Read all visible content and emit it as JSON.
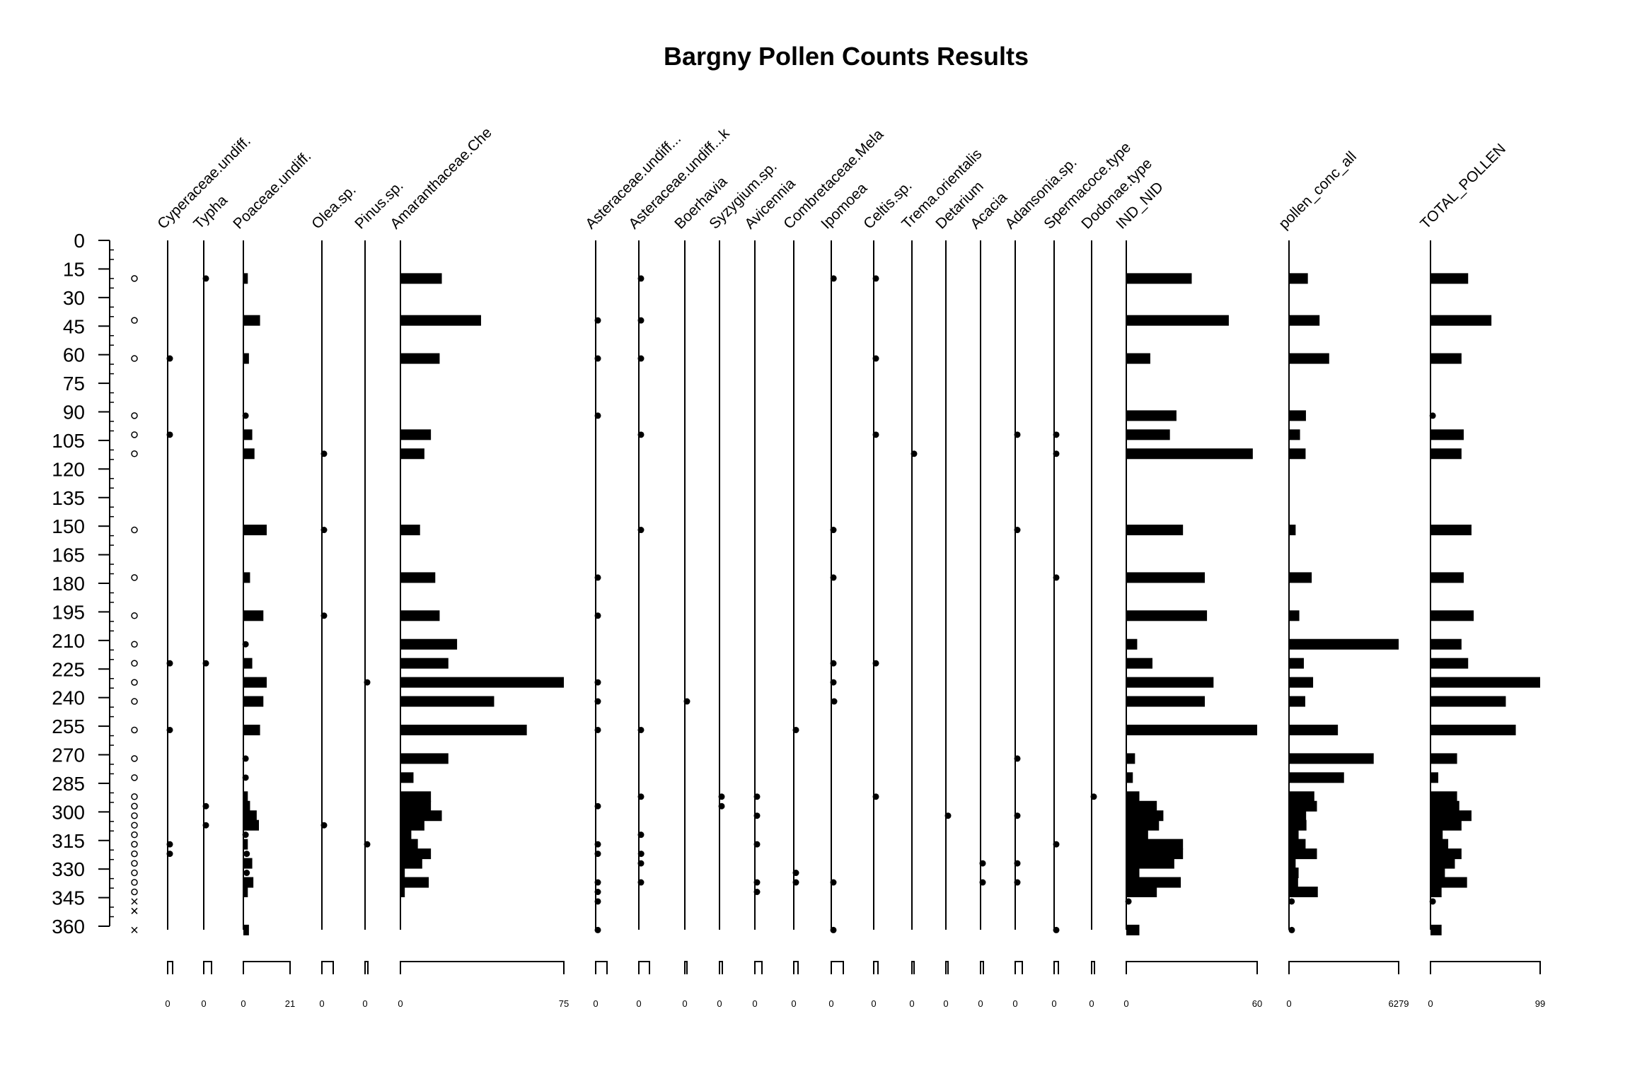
{
  "chart_data": {
    "type": "bar",
    "title": "Bargny Pollen Counts Results",
    "depth_ticks": [
      0,
      15,
      30,
      45,
      60,
      75,
      90,
      105,
      120,
      135,
      150,
      165,
      180,
      195,
      210,
      225,
      240,
      255,
      270,
      285,
      300,
      315,
      330,
      345,
      360
    ],
    "depth_range": [
      0,
      360
    ],
    "depths": [
      20,
      42,
      62,
      92,
      102,
      112,
      152,
      177,
      197,
      212,
      222,
      232,
      242,
      257,
      272,
      282,
      292,
      297,
      302,
      307,
      312,
      317,
      322,
      327,
      332,
      337,
      342,
      347,
      352,
      362
    ],
    "depth_markers": [
      "o",
      "o",
      "o",
      "o",
      "o",
      "o",
      "o",
      "o",
      "o",
      "o",
      "o",
      "o",
      "o",
      "o",
      "o",
      "o",
      "o",
      "o",
      "o",
      "o",
      "o",
      "o",
      "o",
      "o",
      "o",
      "o",
      "o",
      "x",
      "x",
      "x"
    ],
    "taxa": [
      {
        "name": "Cyperaceae.undiff.",
        "scale_max": "",
        "scale_min": "0",
        "max": 21,
        "values": [
          0,
          0,
          1,
          0,
          1,
          0,
          0,
          0,
          0,
          0,
          1,
          0,
          0,
          1,
          0,
          0,
          0,
          0,
          0,
          0,
          0,
          1,
          1,
          0,
          0,
          0,
          0,
          0,
          0,
          0
        ]
      },
      {
        "name": "Typha",
        "scale_max": "",
        "scale_min": "0",
        "max": 21,
        "values": [
          1,
          0,
          0,
          0,
          0,
          0,
          0,
          0,
          0,
          0,
          1,
          0,
          0,
          0,
          0,
          0,
          0,
          1.5,
          0,
          1,
          0,
          0,
          0,
          0,
          0,
          0,
          0,
          0,
          0,
          0
        ]
      },
      {
        "name": "Poaceae.undiff.",
        "scale_max": "21",
        "scale_min": "0",
        "max": 21,
        "values": [
          2,
          7.5,
          2.5,
          1,
          4,
          5,
          10.5,
          3,
          9,
          1,
          4,
          10.5,
          9,
          7.5,
          1,
          1,
          2,
          3,
          6,
          7,
          1,
          2,
          1.5,
          4,
          1.5,
          4.5,
          2,
          0,
          0,
          2.5
        ]
      },
      {
        "name": "Olea.sp.",
        "scale_max": "",
        "scale_min": "0",
        "max": 21,
        "values": [
          0,
          0,
          0,
          0,
          0,
          2,
          1,
          0,
          0.5,
          0,
          0,
          0,
          0,
          0,
          0,
          0,
          0,
          0,
          0,
          1,
          0,
          0,
          0,
          0,
          0,
          0,
          0,
          0,
          0,
          0
        ]
      },
      {
        "name": "Pinus.sp.",
        "scale_max": "",
        "scale_min": "0",
        "max": 21,
        "values": [
          0,
          0,
          0,
          0,
          0,
          0,
          0,
          0,
          0,
          0,
          0,
          0.5,
          0,
          0,
          0,
          0,
          0,
          0,
          0,
          0,
          0,
          0.5,
          0,
          0,
          0,
          0,
          0,
          0,
          0,
          0
        ]
      },
      {
        "name": "Amaranthaceae.Che",
        "scale_max": "75",
        "scale_min": "0",
        "max": 75,
        "values": [
          19,
          37,
          18,
          0,
          14,
          11,
          9,
          16,
          18,
          26,
          22,
          75,
          43,
          58,
          22,
          6,
          14,
          14,
          19,
          11,
          5,
          8,
          14,
          10,
          2,
          13,
          2,
          0,
          0,
          0
        ]
      },
      {
        "name": "Asteraceae.undiff...",
        "scale_max": "",
        "scale_min": "0",
        "max": 21,
        "values": [
          0,
          1,
          1,
          1,
          0,
          0,
          0,
          3,
          1,
          0,
          0,
          1,
          1,
          1,
          0,
          0,
          0,
          1,
          0,
          0,
          0,
          1,
          1,
          0,
          0,
          1,
          1,
          1,
          0,
          1
        ]
      },
      {
        "name": "Asteraceae.undiff...k",
        "scale_max": "",
        "scale_min": "0",
        "max": 21,
        "values": [
          3,
          1.5,
          1,
          0,
          1.5,
          0,
          2,
          0,
          0,
          0,
          0,
          0,
          0,
          1,
          0,
          0,
          1,
          0,
          0,
          0,
          2,
          0,
          4.5,
          2,
          0,
          2,
          0,
          0,
          0,
          0
        ]
      },
      {
        "name": "Boerhavia",
        "scale_max": "",
        "scale_min": "0",
        "max": 21,
        "values": [
          0,
          0,
          0,
          0,
          0,
          0,
          0,
          0,
          0,
          0,
          0,
          0,
          1,
          0,
          0,
          0,
          0,
          0,
          0,
          0,
          0,
          0,
          0,
          0,
          0,
          0,
          0,
          0,
          0,
          0
        ]
      },
      {
        "name": "Syzygium.sp.",
        "scale_max": "",
        "scale_min": "0",
        "max": 21,
        "values": [
          0,
          0,
          0,
          0,
          0,
          0,
          0,
          0,
          0,
          0,
          0,
          0,
          0,
          0,
          0,
          0,
          1,
          1,
          0,
          0,
          0,
          0,
          0,
          0,
          0,
          0,
          0,
          0,
          0,
          0
        ]
      },
      {
        "name": "Avicennia",
        "scale_max": "",
        "scale_min": "0",
        "max": 21,
        "values": [
          0,
          0,
          0,
          0,
          0,
          0,
          0,
          0,
          0,
          0,
          0,
          0,
          0,
          0,
          0,
          0,
          2,
          0,
          2,
          0,
          0,
          1,
          0,
          0,
          0,
          1,
          2,
          0,
          0,
          0
        ]
      },
      {
        "name": "Combretaceae.Mela",
        "scale_max": "",
        "scale_min": "0",
        "max": 21,
        "values": [
          0,
          0,
          0,
          0,
          0,
          0,
          0,
          0,
          0,
          0,
          0,
          0,
          0,
          1,
          0,
          0,
          0,
          0,
          0,
          0,
          0,
          0,
          0,
          0,
          1,
          2,
          0,
          0,
          0,
          0
        ]
      },
      {
        "name": "Ipomoea",
        "scale_max": "",
        "scale_min": "0",
        "max": 21,
        "values": [
          4,
          0,
          0,
          0,
          0,
          0,
          1,
          1,
          0,
          0,
          1,
          1,
          5,
          0,
          0,
          0,
          0,
          0,
          0,
          0,
          0,
          0,
          0,
          0,
          0,
          1,
          0,
          0,
          0,
          1
        ]
      },
      {
        "name": "Celtis.sp.",
        "scale_max": "",
        "scale_min": "0",
        "max": 21,
        "values": [
          1,
          0,
          1,
          0,
          1,
          0,
          0,
          0,
          0,
          0,
          1,
          0,
          0,
          0,
          0,
          0,
          2,
          0,
          0,
          0,
          0,
          0,
          0,
          0,
          0,
          0,
          0,
          0,
          0,
          0
        ]
      },
      {
        "name": "Trema.orientalis",
        "scale_max": "",
        "scale_min": "0",
        "max": 21,
        "values": [
          0,
          0,
          0,
          0,
          0,
          1,
          0,
          0,
          0,
          0,
          0,
          0,
          0,
          0,
          0,
          0,
          0,
          0,
          0,
          0,
          0,
          0,
          0,
          0,
          0,
          0,
          0,
          0,
          0,
          0
        ]
      },
      {
        "name": "Detarium",
        "scale_max": "",
        "scale_min": "0",
        "max": 21,
        "values": [
          0,
          0,
          0,
          0,
          0,
          0,
          0,
          0,
          0,
          0,
          0,
          0,
          0,
          0,
          0,
          0,
          0,
          0,
          1,
          0,
          0,
          0,
          0,
          0,
          0,
          0,
          0,
          0,
          0,
          0
        ]
      },
      {
        "name": "Acacia",
        "scale_max": "",
        "scale_min": "0",
        "max": 21,
        "values": [
          0,
          0,
          0,
          0,
          0,
          0,
          0,
          0,
          0,
          0,
          0,
          0,
          0,
          0,
          0,
          0,
          0,
          0,
          0,
          0,
          0,
          0,
          0,
          1,
          0,
          1,
          0,
          0,
          0,
          0
        ]
      },
      {
        "name": "Adansonia.sp.",
        "scale_max": "",
        "scale_min": "0",
        "max": 21,
        "values": [
          0,
          0,
          0,
          0,
          1,
          0,
          1,
          0,
          0,
          0,
          0,
          0,
          0,
          0,
          1,
          0,
          0,
          0,
          2,
          0,
          0,
          0,
          0,
          3,
          0,
          1,
          0,
          0,
          0,
          0
        ]
      },
      {
        "name": "Spermacoce.type",
        "scale_max": "",
        "scale_min": "0",
        "max": 21,
        "values": [
          0,
          0,
          0,
          0,
          2,
          1,
          0,
          1,
          0,
          0,
          0,
          0,
          0,
          0,
          0,
          0,
          0,
          0,
          0,
          0,
          0,
          1,
          0,
          0,
          0,
          0,
          0,
          0,
          0,
          2
        ]
      },
      {
        "name": "Dodonae.type",
        "scale_max": "",
        "scale_min": "0",
        "max": 21,
        "values": [
          0,
          0,
          0,
          0,
          0,
          0,
          0,
          0,
          0,
          0,
          0,
          0,
          0,
          0,
          0,
          0,
          1,
          0,
          0,
          0,
          0,
          0,
          0,
          0,
          0,
          0,
          0,
          0,
          0,
          0
        ]
      },
      {
        "name": "IND_NID",
        "scale_max": "60",
        "scale_min": "0",
        "max": 60,
        "values": [
          30,
          47,
          11,
          23,
          20,
          58,
          26,
          36,
          37,
          5,
          12,
          40,
          36,
          60,
          4,
          3,
          6,
          14,
          17,
          15,
          10,
          26,
          26,
          22,
          6,
          25,
          14,
          1,
          0,
          6
        ]
      },
      {
        "name": "pollen_conc_all",
        "scale_max": "6279",
        "scale_min": "0",
        "max": 6279,
        "values": [
          1080,
          1750,
          2300,
          970,
          630,
          950,
          380,
          1300,
          590,
          6279,
          850,
          1380,
          930,
          2800,
          4850,
          3150,
          1450,
          1600,
          980,
          1000,
          550,
          950,
          1600,
          380,
          550,
          520,
          1650,
          150,
          0,
          160
        ]
      },
      {
        "name": "TOTAL_POLLEN",
        "scale_max": "99",
        "scale_min": "0",
        "max": 99,
        "values": [
          34,
          55,
          28,
          2,
          30,
          28,
          37,
          30,
          39,
          28,
          34,
          99,
          68,
          77,
          24,
          7,
          24,
          26,
          37,
          28,
          11,
          16,
          28,
          22,
          13,
          33,
          10,
          2,
          0,
          10
        ]
      }
    ]
  }
}
